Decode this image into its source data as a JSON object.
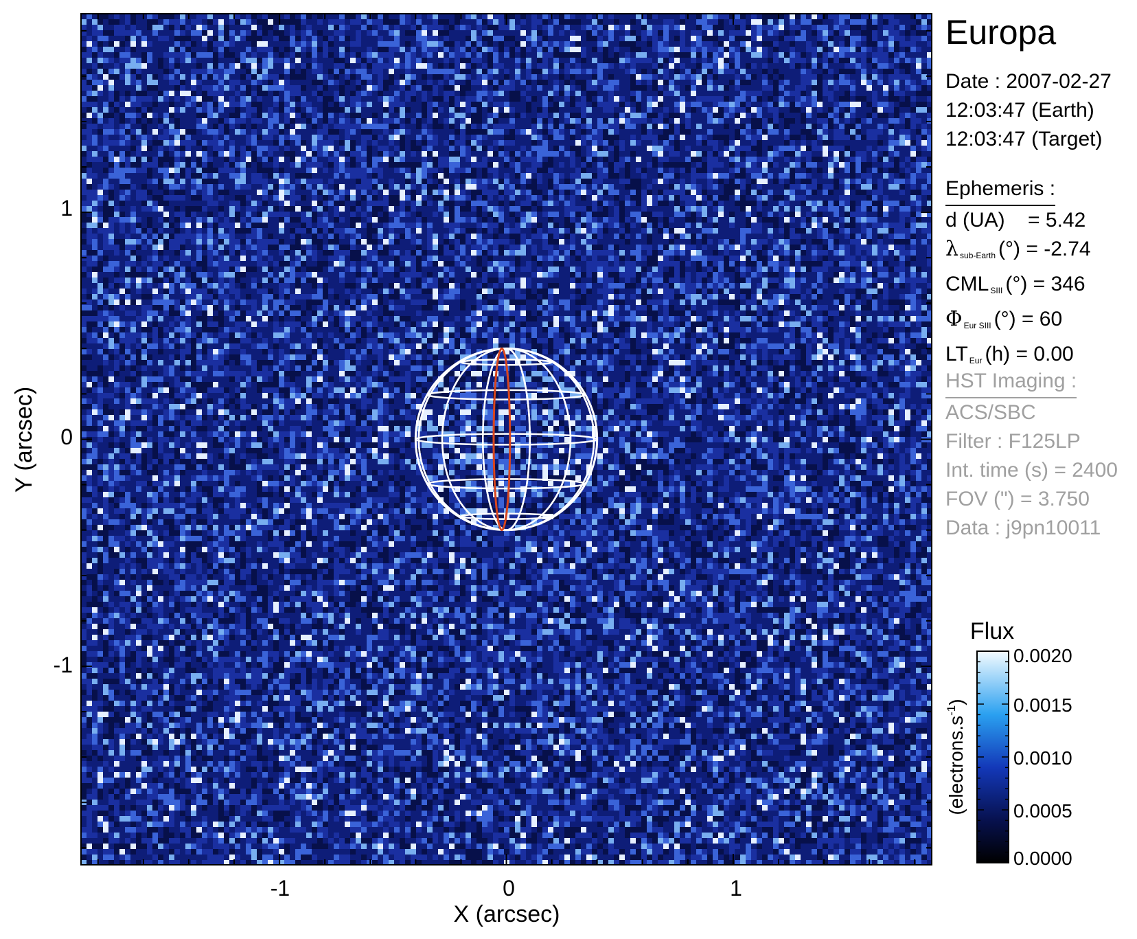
{
  "chart_data": {
    "type": "heatmap",
    "xlabel": "X (arcsec)",
    "ylabel": "Y (arcsec)",
    "xlim": [
      -1.875,
      1.875
    ],
    "ylim": [
      -1.875,
      1.875
    ],
    "x_ticks": [
      "-1",
      "0",
      "1"
    ],
    "y_ticks": [
      "1",
      "0",
      "-1"
    ],
    "target_radius_arcsec": 0.4,
    "colorbar": {
      "title": "Flux",
      "label": "(electrons.s",
      "label_sup": "-1",
      "label_end": ")",
      "ticks": [
        "0.0020",
        "0.0015",
        "0.0010",
        "0.0005",
        "0.0000"
      ],
      "range": [
        0.0,
        0.002
      ]
    }
  },
  "panel": {
    "target": "Europa",
    "date_line": "Date : 2007-02-27",
    "earth_time": "12:03:47 (Earth)",
    "target_time": "12:03:47 (Target)",
    "ephem_header": "Ephemeris :",
    "distance_label": "d (UA)",
    "distance_value": "= 5.42",
    "lambda_symbol": "λ",
    "lambda_sub": "sub-Earth",
    "lambda_value": "(°) = -2.74",
    "cml_label": "CML",
    "cml_sub": "SIII",
    "cml_value": "(°) = 346",
    "phi_symbol": "Φ",
    "phi_sub": "Eur SIII",
    "phi_value": "(°) = 60",
    "lt_label": "LT",
    "lt_sub": "Eur",
    "lt_value": "(h) = 0.00",
    "hst_header": "HST Imaging :",
    "instrument": "ACS/SBC",
    "filter": "Filter : F125LP",
    "int_time": "Int. time (s) = 2400",
    "fov": "FOV (\") = 3.750",
    "dataset": "Data : j9pn10011"
  }
}
